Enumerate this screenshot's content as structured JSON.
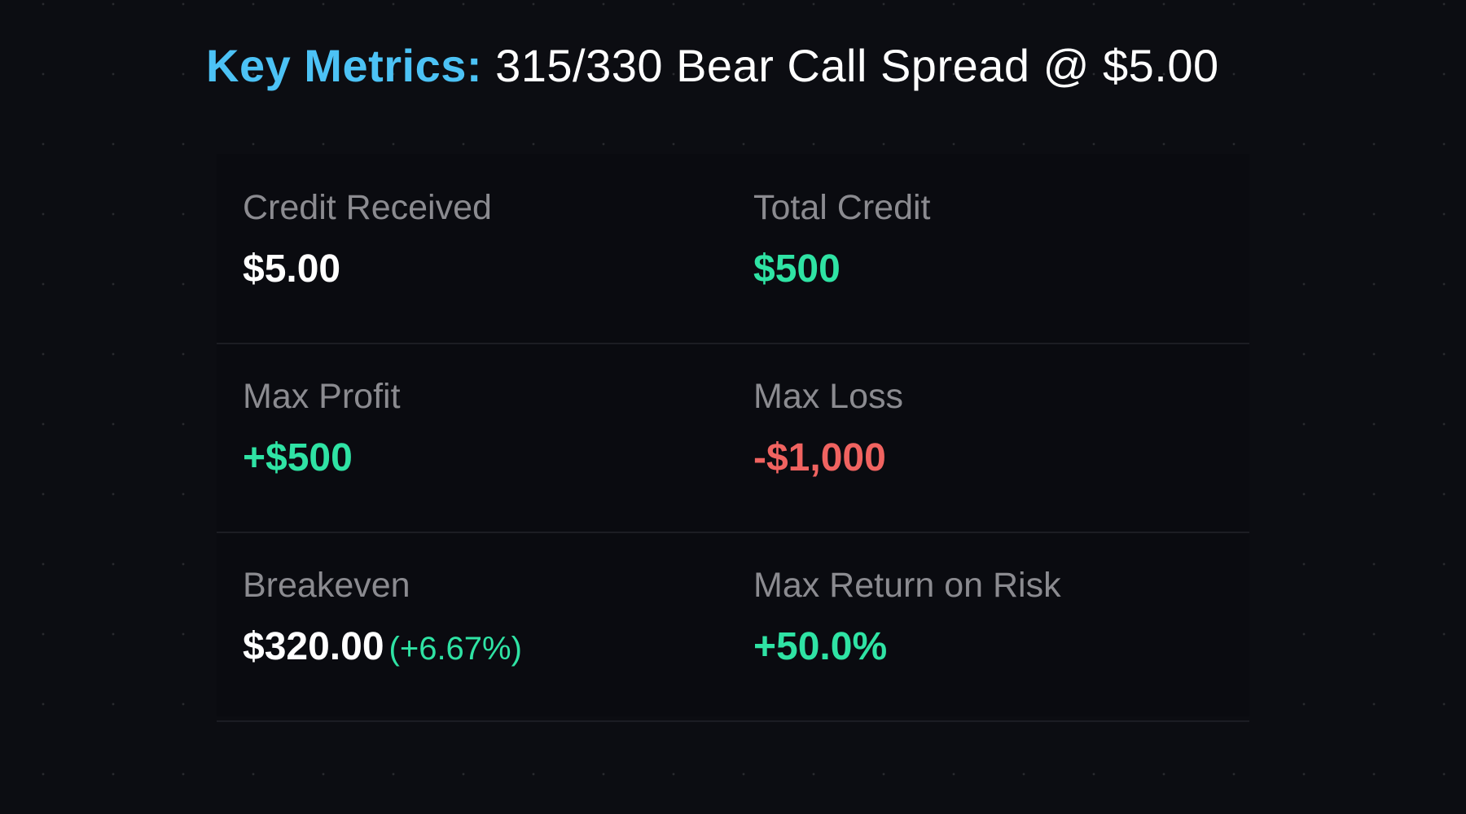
{
  "header": {
    "accent": "Key Metrics:",
    "title": "315/330 Bear Call Spread @ $5.00"
  },
  "colors": {
    "accent": "#4cc2f5",
    "positive": "#2fe3a4",
    "negative": "#f06360"
  },
  "metrics": [
    {
      "label": "Credit Received",
      "value": "$5.00"
    },
    {
      "label": "Total Credit",
      "value": "$500"
    },
    {
      "label": "Max Profit",
      "value": "+$500"
    },
    {
      "label": "Max Loss",
      "value": "-$1,000"
    },
    {
      "label": "Breakeven",
      "value": "$320.00",
      "sub": "(+6.67%)"
    },
    {
      "label": "Max Return on Risk",
      "value": "+50.0%"
    }
  ]
}
